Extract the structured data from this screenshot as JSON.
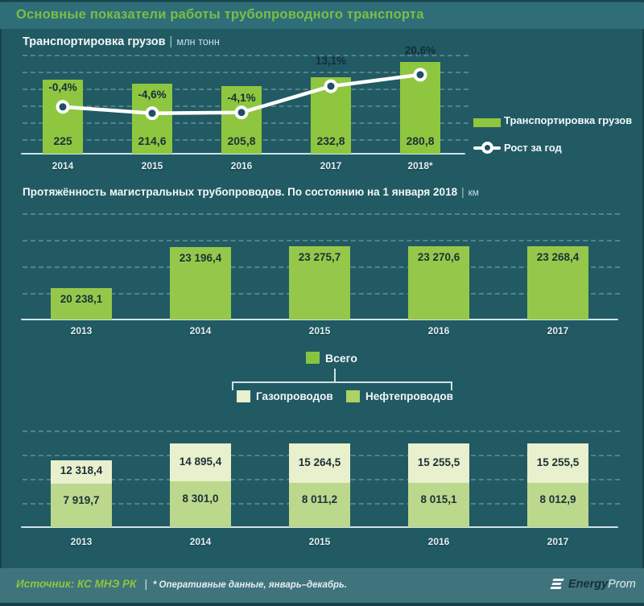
{
  "header": {
    "title": "Основные показатели работы трубопроводного транспорта"
  },
  "theme": {
    "background": "#215a63",
    "header_band": "#2f6e78",
    "title_green": "#77c043",
    "bar_green": "#8fc63f",
    "bar_green_total": "#95c84a",
    "pale_green_gas": "#e8f0cd",
    "medium_green_oil": "#bcd88d",
    "line_white": "#ffffff",
    "marker_fill": "#1e4f63",
    "axis_line": "#cde2e8",
    "dark_text": "#1d3038",
    "footer_band": "#40747d",
    "source_green": "#8dc63f"
  },
  "chart_data": [
    {
      "type": "bar",
      "title": "Транспортировка  грузов",
      "sep": "|",
      "unit": "млн тонн",
      "categories": [
        "2014",
        "2015",
        "2016",
        "2017",
        "2018*"
      ],
      "series": [
        {
          "name": "Транспортировка грузов",
          "type": "bar",
          "values": [
            225,
            214.6,
            205.8,
            232.8,
            280.8
          ],
          "labels": [
            "225",
            "214,6",
            "205,8",
            "232,8",
            "280,8"
          ],
          "color": "#8fc63f"
        },
        {
          "name": "Рост за год",
          "type": "line",
          "values": [
            -0.4,
            -4.6,
            -4.1,
            13.1,
            20.6
          ],
          "labels": [
            "-0,4%",
            "-4,6%",
            "-4,1%",
            "13,1%",
            "20,6%"
          ],
          "color": "#ffffff"
        }
      ],
      "ylim": [
        0,
        290
      ],
      "y2lim_percent": [
        -6,
        26
      ],
      "grid": "dashed-horizontal",
      "legend_position": "right"
    },
    {
      "type": "bar",
      "title": "Протяжённость  магистральных  трубопроводов.  По состоянию  на 1 января  2018",
      "sep": "|",
      "unit": "км",
      "categories": [
        "2013",
        "2014",
        "2015",
        "2016",
        "2017"
      ],
      "series": [
        {
          "name": "Всего",
          "type": "bar",
          "values": [
            20238.1,
            23196.4,
            23275.7,
            23270.6,
            23268.4
          ],
          "labels": [
            "20 238,1",
            "23 196,4",
            "23 275,7",
            "23 270,6",
            "23 268,4"
          ],
          "color": "#95c84a"
        }
      ],
      "ylim": [
        18000,
        23600
      ],
      "grid": "dashed-horizontal",
      "legend_position": "bottom"
    },
    {
      "type": "stacked-bar",
      "categories": [
        "2013",
        "2014",
        "2015",
        "2016",
        "2017"
      ],
      "series": [
        {
          "name": "Газопроводов",
          "stack_position": "top",
          "values": [
            12318.4,
            14895.4,
            15264.5,
            15255.5,
            15255.5
          ],
          "labels": [
            "12 318,4",
            "14 895,4",
            "15 264,5",
            "15 255,5",
            "15 255,5"
          ],
          "color": "#e8f0cd"
        },
        {
          "name": "Нефтепроводов",
          "stack_position": "bottom",
          "values": [
            7919.7,
            8301.0,
            8011.2,
            8015.1,
            8012.9
          ],
          "labels": [
            "7 919,7",
            "8 301,0",
            "8 011,2",
            "8 015,1",
            "8 012,9"
          ],
          "color": "#bcd88d"
        }
      ],
      "grid": "dashed-horizontal",
      "legend_position": "above"
    }
  ],
  "legends": {
    "transport": [
      {
        "label": "Транспортировка грузов",
        "swatch": "green-bar"
      },
      {
        "label": "Рост за год",
        "swatch": "white-line-circle-marker"
      }
    ],
    "length": {
      "total_label": "Всего",
      "breakdown": [
        {
          "label": "Газопроводов",
          "color": "#e8f0cd"
        },
        {
          "label": "Нефтепроводов",
          "color": "#abd365"
        }
      ]
    }
  },
  "footer": {
    "source": "Источник: КС МНЭ РК",
    "separator": "|",
    "note": "* Оперативные данные, январь–декабрь.",
    "logo": {
      "bold": "Energy",
      "light": "Prom"
    }
  }
}
